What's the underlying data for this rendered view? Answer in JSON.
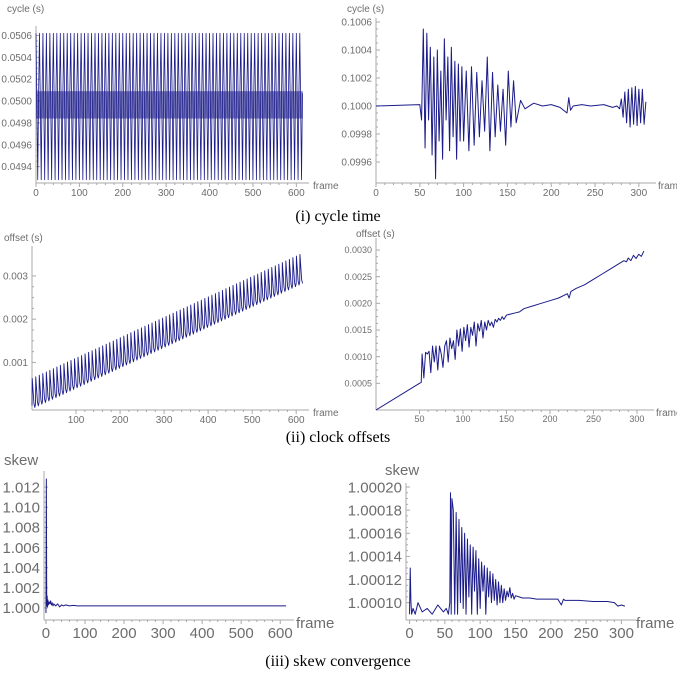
{
  "captions": {
    "cycle": "(i) cycle time",
    "offsets": "(ii) clock offsets",
    "skew": "(iii) skew convergence"
  },
  "colors": {
    "series": "#1b1b8a",
    "axis": "#a8a8a8",
    "tick_text": "#6d6d6d"
  },
  "chart_data": [
    {
      "id": "cycle-left",
      "type": "line",
      "xlabel": "frame",
      "ylabel": "cycle (s)",
      "xlim": [
        0,
        620
      ],
      "ylim": [
        0.04925,
        0.05065
      ],
      "xticks": [
        0,
        100,
        200,
        300,
        400,
        500,
        600
      ],
      "xtick_labels": [
        "0",
        "100",
        "200",
        "300",
        "400",
        "500",
        "600"
      ],
      "yticks": [
        0.0494,
        0.0496,
        0.0498,
        0.05,
        0.0502,
        0.0504,
        0.0506
      ],
      "ytick_labels": [
        "0.0494",
        "0.0496",
        "0.0498",
        "0.0500",
        "0.0502",
        "0.0504",
        "0.0506"
      ],
      "series": [
        {
          "pattern": "periodic-spikes",
          "x_start": 0,
          "x_end": 615,
          "period": 8,
          "baseline_low": 0.04996,
          "baseline_high": 0.05007,
          "spike_low": 0.04928,
          "spike_high": 0.05062,
          "dense_band": [
            0.04984,
            0.05009
          ]
        }
      ]
    },
    {
      "id": "cycle-right",
      "type": "line",
      "xlabel": "frame",
      "ylabel": "cycle (s)",
      "xlim": [
        0,
        315
      ],
      "ylim": [
        0.09945,
        0.1006
      ],
      "xticks": [
        0,
        50,
        100,
        150,
        200,
        250,
        300
      ],
      "xtick_labels": [
        "0",
        "50",
        "100",
        "150",
        "200",
        "250",
        "300"
      ],
      "yticks": [
        0.0996,
        0.0998,
        0.1,
        0.1002,
        0.1004,
        0.1006
      ],
      "ytick_labels": [
        "0.0996",
        "0.0998",
        "0.1000",
        "0.1002",
        "0.1004",
        "0.1006"
      ],
      "series": [
        {
          "x": [
            0,
            50,
            52,
            54,
            56,
            58,
            60,
            62,
            64,
            66,
            68,
            70,
            72,
            74,
            76,
            78,
            80,
            82,
            84,
            86,
            88,
            90,
            92,
            94,
            96,
            98,
            100,
            103,
            106,
            109,
            112,
            115,
            118,
            121,
            124,
            127,
            130,
            133,
            136,
            139,
            142,
            145,
            148,
            151,
            154,
            157,
            160,
            165,
            170,
            180,
            190,
            200,
            210,
            218,
            220,
            222,
            225,
            235,
            245,
            260,
            270,
            275,
            278,
            280,
            282,
            284,
            286,
            288,
            290,
            292,
            294,
            296,
            298,
            300,
            302,
            304,
            306,
            308
          ],
          "y": [
            0.1,
            0.10001,
            0.0999,
            0.10055,
            0.0997,
            0.10052,
            0.0999,
            0.10042,
            0.09965,
            0.10035,
            0.09948,
            0.1004,
            0.09975,
            0.10025,
            0.09962,
            0.10048,
            0.0999,
            0.10035,
            0.09968,
            0.10042,
            0.09978,
            0.10032,
            0.09962,
            0.1003,
            0.09975,
            0.10028,
            0.09975,
            0.10025,
            0.09968,
            0.10028,
            0.09972,
            0.10024,
            0.09978,
            0.10018,
            0.09982,
            0.10035,
            0.09968,
            0.10024,
            0.09978,
            0.10015,
            0.09982,
            0.10012,
            0.09972,
            0.10025,
            0.09985,
            0.10018,
            0.09988,
            0.10004,
            0.09998,
            0.10002,
            0.1,
            0.10001,
            0.09999,
            0.09995,
            0.10006,
            0.09997,
            0.1,
            0.10001,
            0.1,
            0.10001,
            0.09999,
            0.1,
            0.09998,
            0.10005,
            0.09992,
            0.1001,
            0.09988,
            0.10012,
            0.09985,
            0.10013,
            0.09987,
            0.10014,
            0.09986,
            0.10012,
            0.09988,
            0.10012,
            0.09987,
            0.10003
          ]
        }
      ]
    },
    {
      "id": "offset-left",
      "type": "line",
      "xlabel": "frame",
      "ylabel": "offset (s)",
      "xlim": [
        0,
        620
      ],
      "ylim": [
        -0.0001,
        0.0036
      ],
      "xticks": [
        100,
        200,
        300,
        400,
        500,
        600
      ],
      "xtick_labels": [
        "100",
        "200",
        "300",
        "400",
        "500",
        "600"
      ],
      "yticks": [
        0.001,
        0.002,
        0.003
      ],
      "ytick_labels": [
        "0.001",
        "0.002",
        "0.003"
      ],
      "series": [
        {
          "pattern": "sawtooth-ramp",
          "x_start": 0,
          "x_end": 615,
          "period": 8,
          "start": 0.0,
          "end": 0.0029,
          "spike_height": 0.00063
        }
      ]
    },
    {
      "id": "offset-right",
      "type": "line",
      "xlabel": "frame",
      "ylabel": "offset (s)",
      "xlim": [
        0,
        315
      ],
      "ylim": [
        0,
        0.00315
      ],
      "xticks": [
        50,
        100,
        150,
        200,
        250,
        300
      ],
      "xtick_labels": [
        "50",
        "100",
        "150",
        "200",
        "250",
        "300"
      ],
      "yticks": [
        0.0005,
        0.001,
        0.0015,
        0.002,
        0.0025,
        0.003
      ],
      "ytick_labels": [
        "0.0005",
        "0.0010",
        "0.0015",
        "0.0020",
        "0.0025",
        "0.0030"
      ],
      "series": [
        {
          "x": [
            0,
            50,
            52,
            53,
            55,
            57,
            59,
            61,
            63,
            65,
            67,
            69,
            71,
            73,
            75,
            77,
            79,
            81,
            83,
            85,
            87,
            89,
            91,
            93,
            95,
            97,
            99,
            101,
            103,
            105,
            107,
            109,
            111,
            113,
            115,
            117,
            119,
            121,
            123,
            125,
            127,
            129,
            131,
            133,
            135,
            137,
            139,
            141,
            143,
            145,
            147,
            150,
            155,
            160,
            165,
            170,
            180,
            190,
            200,
            210,
            220,
            222,
            224,
            230,
            240,
            250,
            260,
            270,
            280,
            285,
            288,
            290,
            293,
            296,
            299,
            302,
            305,
            308
          ],
          "y": [
            0.0,
            0.0005,
            0.00052,
            0.00105,
            0.0006,
            0.00108,
            0.00105,
            0.0011,
            0.0007,
            0.0012,
            0.0009,
            0.0012,
            0.00075,
            0.0012,
            0.00105,
            0.0008,
            0.0012,
            0.0013,
            0.0009,
            0.00135,
            0.00115,
            0.0013,
            0.00095,
            0.0015,
            0.0012,
            0.00152,
            0.0011,
            0.00155,
            0.0013,
            0.0016,
            0.00118,
            0.00155,
            0.0014,
            0.00165,
            0.0012,
            0.00162,
            0.00148,
            0.00168,
            0.00135,
            0.00165,
            0.0015,
            0.00168,
            0.00158,
            0.00165,
            0.00155,
            0.0017,
            0.00165,
            0.00172,
            0.00168,
            0.00175,
            0.0017,
            0.00178,
            0.0018,
            0.00182,
            0.00184,
            0.0019,
            0.00195,
            0.002,
            0.00205,
            0.0021,
            0.00218,
            0.0021,
            0.00222,
            0.00228,
            0.00235,
            0.00245,
            0.00255,
            0.00265,
            0.00275,
            0.0028,
            0.00278,
            0.00285,
            0.0028,
            0.0029,
            0.00284,
            0.00292,
            0.00288,
            0.00298
          ]
        }
      ]
    },
    {
      "id": "skew-left",
      "type": "line",
      "xlabel": "frame",
      "ylabel": "skew",
      "xlim": [
        -5,
        625
      ],
      "ylim": [
        0.9988,
        1.0132
      ],
      "xticks": [
        0,
        100,
        200,
        300,
        400,
        500,
        600
      ],
      "xtick_labels": [
        "0",
        "100",
        "200",
        "300",
        "400",
        "500",
        "600"
      ],
      "yticks": [
        1.0,
        1.002,
        1.004,
        1.006,
        1.008,
        1.01,
        1.012
      ],
      "ytick_labels": [
        "1.000",
        "1.002",
        "1.004",
        "1.006",
        "1.008",
        "1.010",
        "1.012"
      ],
      "series": [
        {
          "x": [
            0,
            1,
            2,
            3,
            4,
            5,
            6,
            8,
            10,
            12,
            14,
            16,
            18,
            20,
            25,
            30,
            35,
            40,
            45,
            50,
            60,
            70,
            80,
            90,
            100,
            150,
            200,
            300,
            400,
            500,
            600,
            615
          ],
          "y": [
            0.9995,
            1.0128,
            1.0002,
            1.0012,
            1.0001,
            1.0008,
            1.0003,
            1.0006,
            1.0004,
            1.0007,
            1.0003,
            1.0005,
            1.0002,
            1.0004,
            1.0002,
            1.0004,
            1.0001,
            1.0003,
            1.0002,
            1.0003,
            1.0002,
            1.00025,
            1.0002,
            1.0002,
            1.0002,
            1.0002,
            1.0002,
            1.0002,
            1.0002,
            1.0002,
            1.0002,
            1.0002
          ]
        }
      ]
    },
    {
      "id": "skew-right",
      "type": "line",
      "xlabel": "frame",
      "ylabel": "skew",
      "xlim": [
        -5,
        315
      ],
      "ylim": [
        1.000085,
        1.0002
      ],
      "xticks": [
        0,
        50,
        100,
        150,
        200,
        250,
        300
      ],
      "xtick_labels": [
        "0",
        "50",
        "100",
        "150",
        "200",
        "250",
        "300"
      ],
      "yticks": [
        1.0001,
        1.00012,
        1.00014,
        1.00016,
        1.00018,
        1.0002
      ],
      "ytick_labels": [
        "1.00010",
        "1.00012",
        "1.00014",
        "1.00016",
        "1.00018",
        "1.00020"
      ],
      "series": [
        {
          "x": [
            0,
            1,
            2,
            3,
            5,
            8,
            12,
            18,
            25,
            32,
            40,
            48,
            52,
            55,
            57,
            58,
            59,
            60,
            62,
            64,
            66,
            68,
            70,
            72,
            74,
            76,
            78,
            80,
            82,
            84,
            86,
            88,
            90,
            92,
            94,
            96,
            98,
            100,
            102,
            104,
            106,
            108,
            110,
            112,
            114,
            116,
            118,
            120,
            122,
            124,
            126,
            128,
            130,
            132,
            134,
            136,
            138,
            140,
            142,
            144,
            146,
            148,
            150,
            155,
            160,
            170,
            180,
            190,
            200,
            210,
            215,
            218,
            220,
            225,
            240,
            260,
            280,
            290,
            295,
            300,
            305
          ],
          "y": [
            1.00009,
            1.00013,
            1.0001,
            1.00009,
            1.000095,
            1.00009,
            1.0001,
            1.000092,
            1.000095,
            1.00009,
            1.000098,
            1.000092,
            1.000095,
            1.00009,
            1.0001,
            1.000195,
            1.00009,
            1.00019,
            1.00018,
            1.00009,
            1.000178,
            1.00009,
            1.000172,
            1.0001,
            1.000165,
            1.000095,
            1.00016,
            1.00009,
            1.000155,
            1.000105,
            1.00015,
            1.00009,
            1.000148,
            1.00011,
            1.000145,
            1.00009,
            1.000138,
            1.000095,
            1.000135,
            1.00011,
            1.000132,
            1.00009,
            1.00013,
            1.000105,
            1.000127,
            1.0001,
            1.000125,
            1.000102,
            1.00012,
            1.000098,
            1.000118,
            1.0001,
            1.000115,
            1.0001,
            1.000112,
            1.000102,
            1.00011,
            1.000105,
            1.000113,
            1.000104,
            1.000108,
            1.000103,
            1.000106,
            1.000105,
            1.000104,
            1.000104,
            1.000103,
            1.000103,
            1.000103,
            1.000103,
            1.000098,
            1.000103,
            1.000102,
            1.000102,
            1.000102,
            1.000101,
            1.000101,
            1.0001,
            1.000097,
            1.000098,
            1.000097
          ]
        }
      ]
    }
  ]
}
